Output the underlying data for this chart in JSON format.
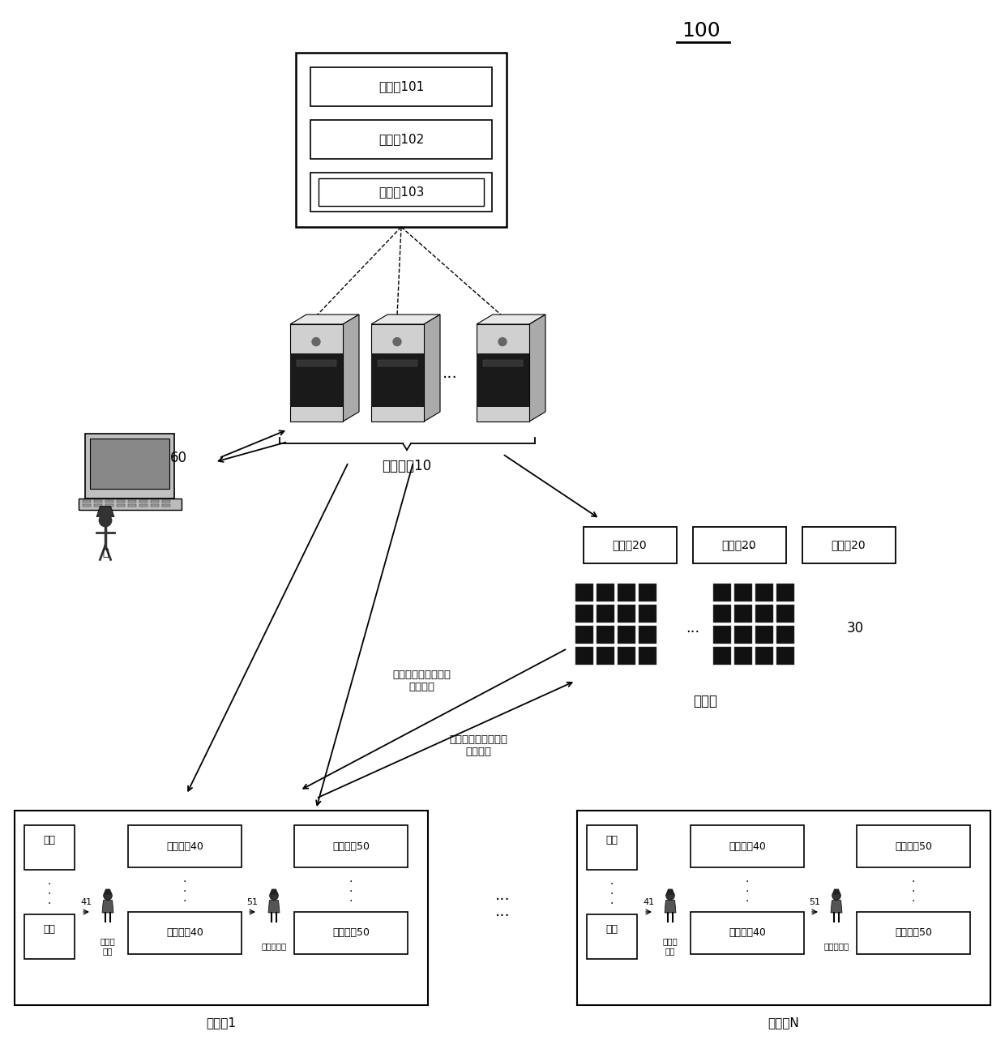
{
  "title": "100",
  "bg_color": "#ffffff",
  "computing_box_label_1": "处理器101",
  "computing_box_label_2": "存储器102",
  "computing_box_label_3": "订单池103",
  "control_system_label": "控制系统10",
  "robot_label": "机器人20",
  "shelf_area_label": "货架区",
  "station1_label": "分拣站1",
  "stationN_label": "分拣站N",
  "arrow_label1": "机器人搬运待拣货货\n架的方向",
  "arrow_label2": "机器人搬运拣完货货\n架的方向",
  "label_30": "30",
  "label_60": "60",
  "huojia": "货架",
  "hcq40_top": "缓存容器40",
  "hcq40_bot": "缓存容器40",
  "ddq50_top": "订单容器50",
  "ddq50_bot": "订单容器50",
  "picker1": "第一拣\n货员",
  "picker2": "第二拣货员",
  "label_41": "41",
  "label_51": "51",
  "ren": "人"
}
